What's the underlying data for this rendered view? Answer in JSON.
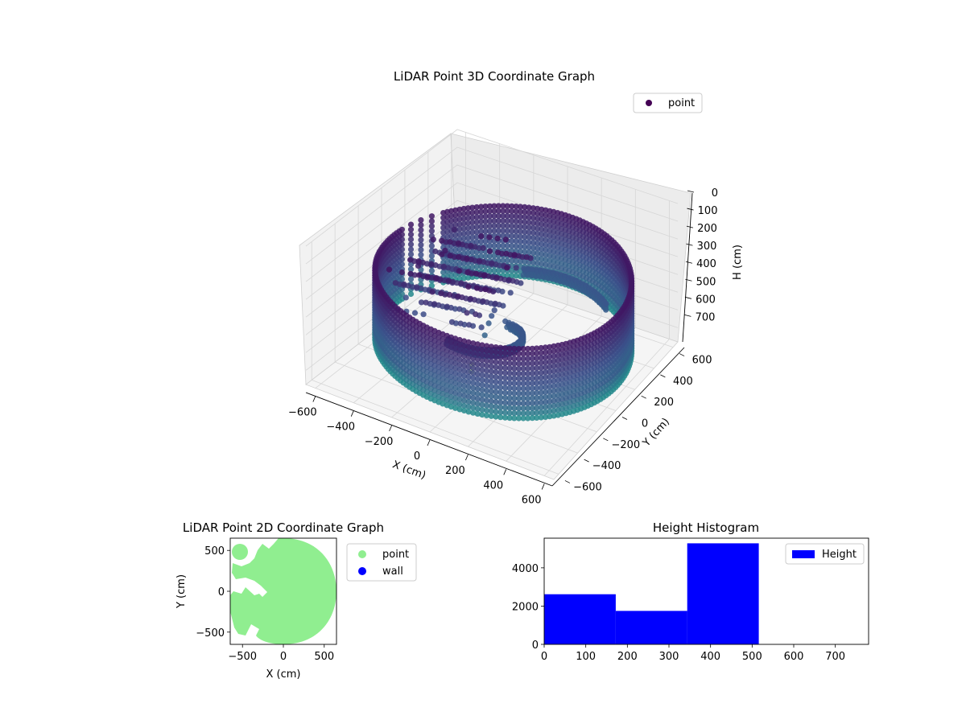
{
  "chart_data": [
    {
      "type": "scatter",
      "title": "LiDAR Point 3D Coordinate Graph",
      "xlabel": "X (cm)",
      "ylabel": "Y (cm)",
      "zlabel": "H (cm)",
      "xlim": [
        -650,
        650
      ],
      "ylim": [
        -650,
        650
      ],
      "zlim": [
        0,
        780
      ],
      "z_inverted": true,
      "x_ticks": [
        -600,
        -400,
        -200,
        0,
        200,
        400,
        600
      ],
      "y_ticks": [
        -600,
        -400,
        -200,
        0,
        200,
        400,
        600
      ],
      "z_ticks": [
        0,
        100,
        200,
        300,
        400,
        500,
        600,
        700
      ],
      "x_tick_labels": [
        "−600",
        "−400",
        "−200",
        "0",
        "200",
        "400",
        "600"
      ],
      "y_tick_labels": [
        "−600",
        "−400",
        "−200",
        "0",
        "200",
        "400",
        "600"
      ],
      "z_tick_labels": [
        "0",
        "100",
        "200",
        "300",
        "400",
        "500",
        "600",
        "700"
      ],
      "grid": true,
      "legend": {
        "position": "top-right",
        "entries": [
          {
            "label": "point",
            "color": "#440154"
          }
        ]
      },
      "colormap": "viridis",
      "series": [
        {
          "name": "point",
          "description_colors": [
            "#440154",
            "#3b528b",
            "#21918c",
            "#a0da39"
          ],
          "sample_points": [
            [
              -80,
              -120,
              760
            ],
            [
              -60,
              -150,
              700
            ],
            [
              -30,
              -80,
              560
            ],
            [
              -20,
              -60,
              500
            ],
            [
              -10,
              -50,
              460
            ],
            [
              0,
              -40,
              430
            ],
            [
              -360,
              -140,
              260
            ],
            [
              -310,
              20,
              240
            ]
          ]
        }
      ]
    },
    {
      "type": "scatter",
      "title": "LiDAR Point 2D Coordinate Graph",
      "xlabel": "X (cm)",
      "ylabel": "Y (cm)",
      "xlim": [
        -650,
        650
      ],
      "ylim": [
        -650,
        650
      ],
      "x_ticks": [
        -500,
        0,
        500
      ],
      "y_ticks": [
        -500,
        0,
        500
      ],
      "x_tick_labels": [
        "−500",
        "0",
        "500"
      ],
      "y_tick_labels": [
        "−500",
        "0",
        "500"
      ],
      "legend": {
        "position": "outside-right",
        "entries": [
          {
            "label": "point",
            "color": "#90ee90"
          },
          {
            "label": "wall",
            "color": "#0000ff"
          }
        ]
      },
      "series": [
        {
          "name": "point",
          "color": "#90ee90",
          "shape": "disk",
          "radius": 640
        },
        {
          "name": "wall",
          "color": "#0000ff"
        }
      ]
    },
    {
      "type": "bar",
      "title": "Height Histogram",
      "xlabel": "",
      "ylabel": "",
      "bins": [
        [
          0,
          172
        ],
        [
          172,
          344
        ],
        [
          344,
          516
        ],
        [
          516,
          688
        ],
        [
          688,
          780
        ]
      ],
      "values": [
        2620,
        1750,
        5280,
        0,
        0
      ],
      "xlim": [
        0,
        780
      ],
      "ylim": [
        0,
        5550
      ],
      "x_ticks": [
        0,
        100,
        200,
        300,
        400,
        500,
        600,
        700
      ],
      "y_ticks": [
        0,
        2000,
        4000
      ],
      "x_tick_labels": [
        "0",
        "100",
        "200",
        "300",
        "400",
        "500",
        "600",
        "700"
      ],
      "y_tick_labels": [
        "0",
        "2000",
        "4000"
      ],
      "color": "#0000ff",
      "legend": {
        "position": "top-right",
        "entries": [
          {
            "label": "Height",
            "color": "#0000ff"
          }
        ]
      }
    }
  ]
}
